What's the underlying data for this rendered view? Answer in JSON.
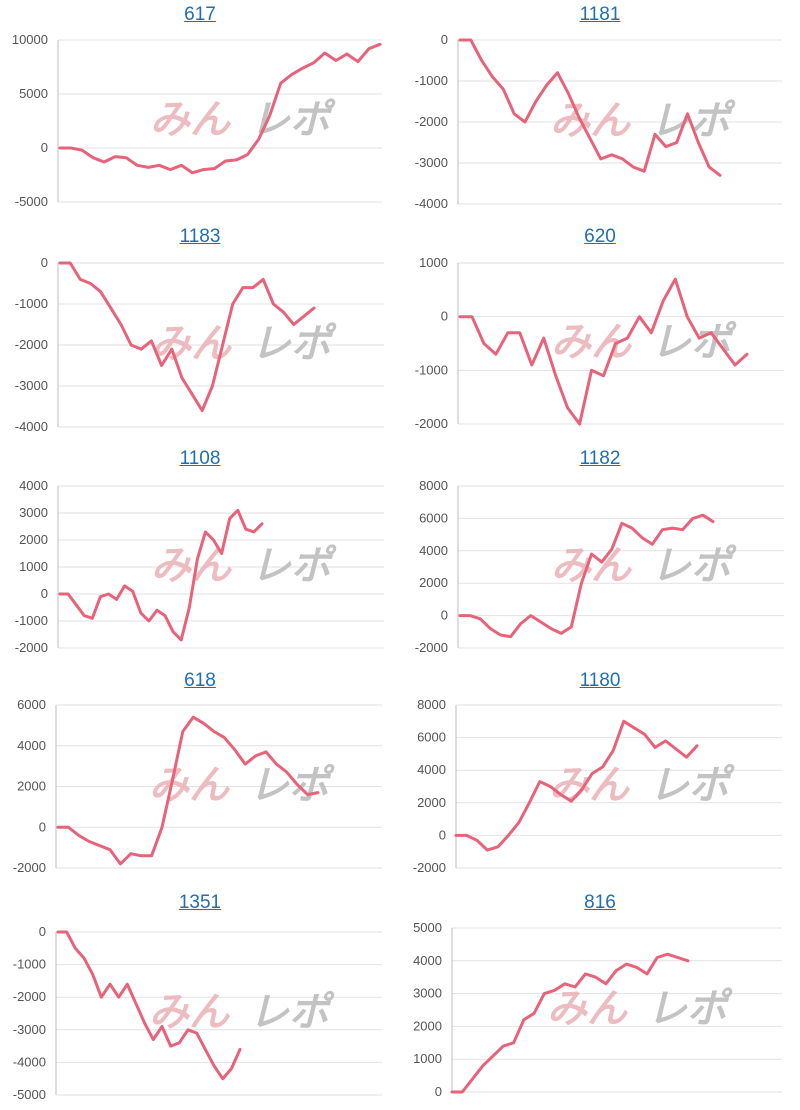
{
  "colors": {
    "line": "#e8627a",
    "grid": "#e2e2e2",
    "axis": "#bdbdbd",
    "title": "#1f6fb2",
    "watermark_pink": "#eab1b6",
    "watermark_gray": "#bdbdbd"
  },
  "watermark": {
    "text": "みんレポ"
  },
  "chart_data": [
    {
      "type": "line",
      "title": "617",
      "yticks": [
        -5000,
        0,
        5000,
        10000
      ],
      "ylim": [
        -5000,
        10000
      ],
      "values": [
        0,
        0,
        -200,
        -900,
        -1300,
        -800,
        -900,
        -1600,
        -1800,
        -1600,
        -2000,
        -1600,
        -2300,
        -2000,
        -1900,
        -1200,
        -1100,
        -600,
        800,
        3000,
        6000,
        6800,
        7400,
        7900,
        8800,
        8100,
        8700,
        8000,
        9200,
        9600
      ]
    },
    {
      "type": "line",
      "title": "1181",
      "yticks": [
        -4000,
        -3000,
        -2000,
        -1000,
        0
      ],
      "ylim": [
        -4000,
        0
      ],
      "values": [
        0,
        0,
        -500,
        -900,
        -1200,
        -1800,
        -2000,
        -1500,
        -1100,
        -800,
        -1300,
        -1900,
        -2400,
        -2900,
        -2800,
        -2900,
        -3100,
        -3200,
        -2300,
        -2600,
        -2500,
        -1800,
        -2500,
        -3100,
        -3300
      ]
    },
    {
      "type": "line",
      "title": "1183",
      "yticks": [
        -4000,
        -3000,
        -2000,
        -1000,
        0
      ],
      "ylim": [
        -4000,
        0
      ],
      "values": [
        0,
        0,
        -400,
        -500,
        -700,
        -1100,
        -1500,
        -2000,
        -2100,
        -1900,
        -2500,
        -2100,
        -2800,
        -3200,
        -3600,
        -3000,
        -2000,
        -1000,
        -600,
        -600,
        -400,
        -1000,
        -1200,
        -1500,
        -1300,
        -1100
      ]
    },
    {
      "type": "line",
      "title": "620",
      "yticks": [
        -2000,
        -1000,
        0,
        1000
      ],
      "ylim": [
        -2000,
        1000
      ],
      "values": [
        0,
        0,
        -500,
        -700,
        -300,
        -300,
        -900,
        -400,
        -1100,
        -1700,
        -2000,
        -1000,
        -1100,
        -500,
        -400,
        0,
        -300,
        300,
        700,
        0,
        -400,
        -300,
        -600,
        -900,
        -700
      ]
    },
    {
      "type": "line",
      "title": "1108",
      "yticks": [
        -2000,
        -1000,
        0,
        1000,
        2000,
        3000,
        4000
      ],
      "ylim": [
        -2000,
        4000
      ],
      "values": [
        0,
        0,
        -400,
        -800,
        -900,
        -100,
        0,
        -200,
        300,
        100,
        -700,
        -1000,
        -600,
        -800,
        -1400,
        -1700,
        -500,
        1300,
        2300,
        2000,
        1500,
        2800,
        3100,
        2400,
        2300,
        2600
      ]
    },
    {
      "type": "line",
      "title": "1182",
      "yticks": [
        -2000,
        0,
        2000,
        4000,
        6000,
        8000
      ],
      "ylim": [
        -2000,
        8000
      ],
      "values": [
        0,
        0,
        -200,
        -800,
        -1200,
        -1300,
        -500,
        0,
        -400,
        -800,
        -1100,
        -700,
        2000,
        3800,
        3300,
        4100,
        5700,
        5400,
        4800,
        4400,
        5300,
        5400,
        5300,
        6000,
        6200,
        5800
      ]
    },
    {
      "type": "line",
      "title": "618",
      "yticks": [
        -2000,
        0,
        2000,
        4000,
        6000
      ],
      "ylim": [
        -2000,
        6000
      ],
      "values": [
        0,
        0,
        -400,
        -700,
        -900,
        -1100,
        -1800,
        -1300,
        -1400,
        -1400,
        0,
        2300,
        4700,
        5400,
        5100,
        4700,
        4400,
        3800,
        3100,
        3500,
        3700,
        3100,
        2700,
        2100,
        1600,
        1700
      ]
    },
    {
      "type": "line",
      "title": "1180",
      "yticks": [
        -2000,
        0,
        2000,
        4000,
        6000,
        8000
      ],
      "ylim": [
        -2000,
        8000
      ],
      "values": [
        0,
        0,
        -300,
        -900,
        -700,
        0,
        800,
        2000,
        3300,
        3000,
        2500,
        2100,
        2800,
        3800,
        4200,
        5200,
        7000,
        6600,
        6200,
        5400,
        5800,
        5300,
        4800,
        5500
      ]
    },
    {
      "type": "line",
      "title": "1351",
      "yticks": [
        -5000,
        -4000,
        -3000,
        -2000,
        -1000,
        0
      ],
      "ylim": [
        -5000,
        0
      ],
      "values": [
        0,
        0,
        -500,
        -800,
        -1300,
        -2000,
        -1600,
        -2000,
        -1600,
        -2200,
        -2800,
        -3300,
        -2900,
        -3500,
        -3400,
        -3000,
        -3100,
        -3600,
        -4100,
        -4500,
        -4200,
        -3600
      ]
    },
    {
      "type": "line",
      "title": "816",
      "yticks": [
        0,
        1000,
        2000,
        3000,
        4000,
        5000
      ],
      "ylim": [
        0,
        5000
      ],
      "values": [
        0,
        0,
        400,
        800,
        1100,
        1400,
        1500,
        2200,
        2400,
        3000,
        3100,
        3300,
        3200,
        3600,
        3500,
        3300,
        3700,
        3900,
        3800,
        3600,
        4100,
        4200,
        4100,
        4000
      ]
    }
  ]
}
